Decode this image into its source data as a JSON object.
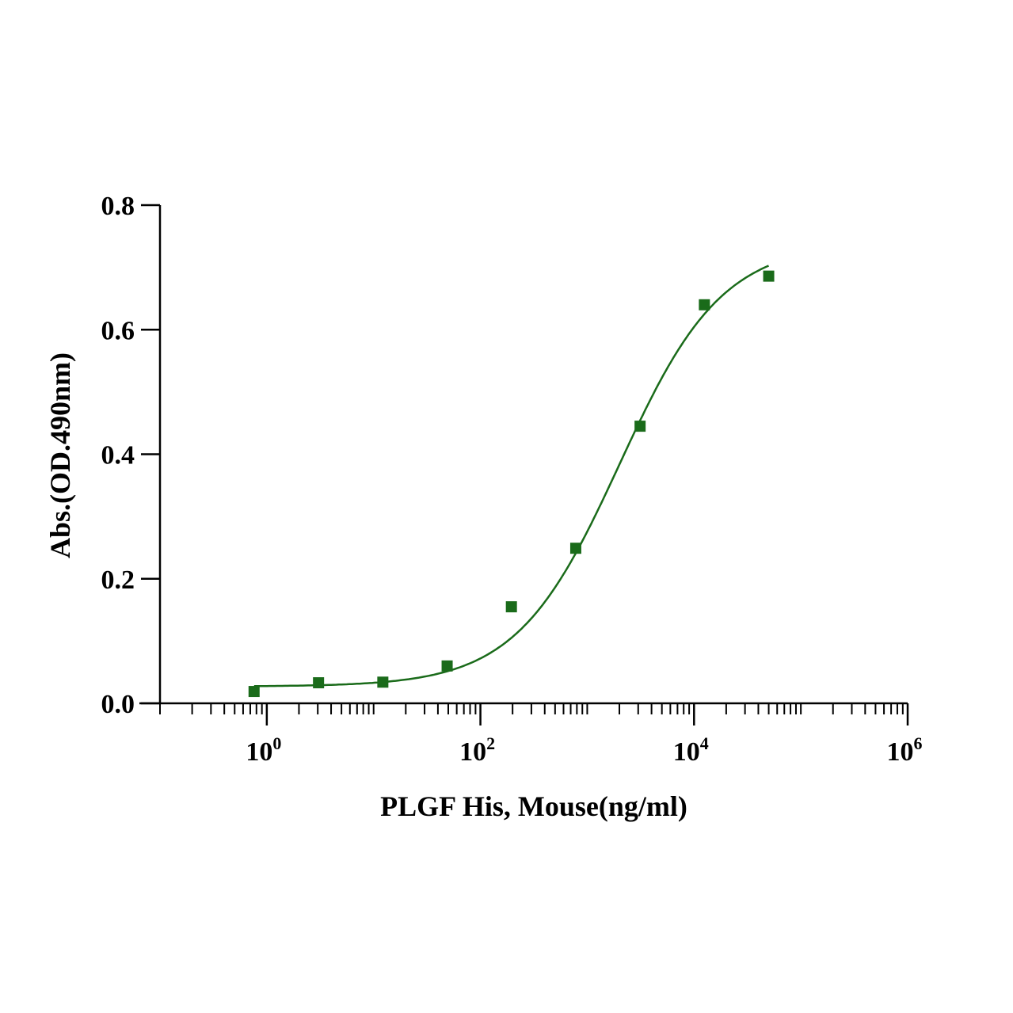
{
  "chart_data": {
    "type": "scatter",
    "title": "",
    "xlabel": "PLGF His, Mouse(ng/ml)",
    "ylabel": "Abs.(OD.490nm)",
    "xscale": "log",
    "xlim": [
      0.1,
      1000000
    ],
    "ylim": [
      0,
      0.8
    ],
    "grid": false,
    "legend": "none",
    "x_ticks": [
      {
        "base": "10",
        "exp": "0",
        "value": 1
      },
      {
        "base": "10",
        "exp": "2",
        "value": 100
      },
      {
        "base": "10",
        "exp": "4",
        "value": 10000
      },
      {
        "base": "10",
        "exp": "6",
        "value": 1000000
      }
    ],
    "y_ticks": [
      "0.0",
      "0.2",
      "0.4",
      "0.6",
      "0.8"
    ],
    "series": [
      {
        "name": "PLGF His, Mouse",
        "color": "#1a6b1a",
        "marker": "square",
        "x": [
          0.76,
          3.05,
          12.2,
          48.8,
          195,
          781,
          3125,
          12500,
          50000
        ],
        "y": [
          0.019,
          0.033,
          0.034,
          0.06,
          0.155,
          0.249,
          0.445,
          0.64,
          0.686
        ]
      }
    ],
    "fit": {
      "model": "4PL",
      "bottom": 0.027,
      "top": 0.74,
      "ec50": 2000,
      "hill": 0.9,
      "x_range": [
        0.76,
        50000
      ],
      "color": "#1a6b1a"
    }
  }
}
